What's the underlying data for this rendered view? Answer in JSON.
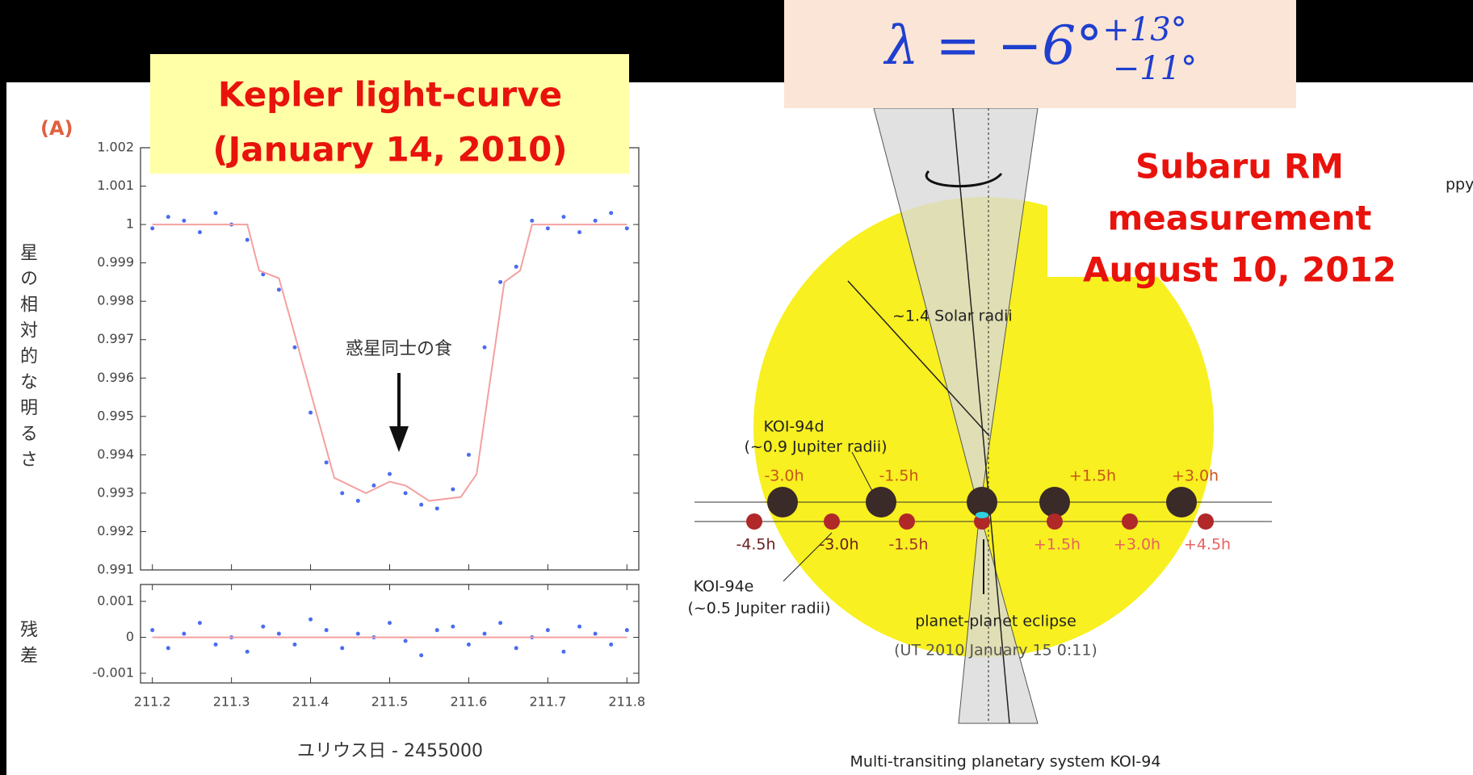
{
  "slide": {
    "left_label": [
      "Kepler light-curve",
      "(January 14, 2010)"
    ],
    "rm_formula": {
      "lhs": "λ = −6°",
      "sup": "+13°",
      "sub": "−11°"
    },
    "right_label": [
      "Subaru RM",
      "measurement",
      "August 10, 2012"
    ],
    "cut_text": "ppy"
  },
  "chart_data": [
    {
      "type": "scatter",
      "panel_label": "(A)",
      "y_label": "星の相対的な明るさ",
      "annotation": "惑星同士の食",
      "xlim": [
        211.185,
        211.815
      ],
      "ylim": [
        0.991,
        1.002
      ],
      "yticks": [
        0.991,
        0.992,
        0.993,
        0.994,
        0.995,
        0.996,
        0.997,
        0.998,
        0.999,
        1,
        1.001,
        1.002
      ],
      "series": [
        {
          "type": "scatter",
          "color": "#4a6cf0",
          "x": [
            211.2,
            211.22,
            211.24,
            211.26,
            211.28,
            211.3,
            211.32,
            211.34,
            211.36,
            211.38,
            211.4,
            211.42,
            211.44,
            211.46,
            211.48,
            211.5,
            211.52,
            211.54,
            211.56,
            211.58,
            211.6,
            211.62,
            211.64,
            211.66,
            211.68,
            211.7,
            211.72,
            211.74,
            211.76,
            211.78,
            211.8
          ],
          "values": [
            0.9999,
            1.0002,
            1.0001,
            0.9998,
            1.0003,
            1.0,
            0.9996,
            0.9987,
            0.9983,
            0.9968,
            0.9951,
            0.9938,
            0.993,
            0.9928,
            0.9932,
            0.9935,
            0.993,
            0.9927,
            0.9926,
            0.9931,
            0.994,
            0.9968,
            0.9985,
            0.9989,
            1.0001,
            0.9999,
            1.0002,
            0.9998,
            1.0001,
            1.0003,
            0.9999
          ]
        },
        {
          "type": "line",
          "color": "#f4a0a0",
          "x": [
            211.2,
            211.32,
            211.335,
            211.36,
            211.375,
            211.43,
            211.47,
            211.5,
            211.52,
            211.55,
            211.59,
            211.61,
            211.645,
            211.665,
            211.68,
            211.8
          ],
          "values": [
            1,
            1,
            0.9988,
            0.9986,
            0.9975,
            0.9934,
            0.993,
            0.9933,
            0.9932,
            0.9928,
            0.9929,
            0.9935,
            0.9985,
            0.9988,
            1,
            1
          ]
        }
      ]
    },
    {
      "type": "scatter",
      "y_label": "残差",
      "x_label": "ユリウス日 - 2455000",
      "xlim": [
        211.185,
        211.815
      ],
      "ylim": [
        -0.00127,
        0.00147
      ],
      "xticks": [
        211.2,
        211.3,
        211.4,
        211.5,
        211.6,
        211.7,
        211.8
      ],
      "yticks": [
        -0.001,
        0,
        0.001
      ],
      "series": [
        {
          "type": "scatter",
          "color": "#4a6cf0",
          "x": [
            211.2,
            211.22,
            211.24,
            211.26,
            211.28,
            211.3,
            211.32,
            211.34,
            211.36,
            211.38,
            211.4,
            211.42,
            211.44,
            211.46,
            211.48,
            211.5,
            211.52,
            211.54,
            211.56,
            211.58,
            211.6,
            211.62,
            211.64,
            211.66,
            211.68,
            211.7,
            211.72,
            211.74,
            211.76,
            211.78,
            211.8
          ],
          "values": [
            0.0002,
            -0.0003,
            0.0001,
            0.0004,
            -0.0002,
            0,
            -0.0004,
            0.0003,
            0.0001,
            -0.0002,
            0.0005,
            0.0002,
            -0.0003,
            0.0001,
            0,
            0.0004,
            -0.0001,
            -0.0005,
            0.0002,
            0.0003,
            -0.0002,
            0.0001,
            0.0004,
            -0.0003,
            0,
            0.0002,
            -0.0004,
            0.0003,
            0.0001,
            -0.0002,
            0.0002
          ]
        },
        {
          "type": "line",
          "color": "#f4a0a0",
          "x": [
            211.2,
            211.8
          ],
          "values": [
            0,
            0
          ]
        }
      ]
    }
  ],
  "diagram": {
    "radius_label": "~1.4 Solar radii",
    "planet_d": {
      "name": "KOI-94d",
      "size": "(~0.9 Jupiter radii)",
      "times": [
        "-3.0h",
        "-1.5h",
        "+1.5h",
        "+3.0h"
      ]
    },
    "planet_e": {
      "name": "KOI-94e",
      "size": "(~0.5 Jupiter radii)",
      "times": [
        "-4.5h",
        "-3.0h",
        "-1.5h",
        "+1.5h",
        "+3.0h",
        "+4.5h"
      ]
    },
    "eclipse": "planet-planet eclipse",
    "eclipse_time": "(UT 2010 January 15 0:11)",
    "caption": "Multi-transiting planetary system KOI-94"
  }
}
